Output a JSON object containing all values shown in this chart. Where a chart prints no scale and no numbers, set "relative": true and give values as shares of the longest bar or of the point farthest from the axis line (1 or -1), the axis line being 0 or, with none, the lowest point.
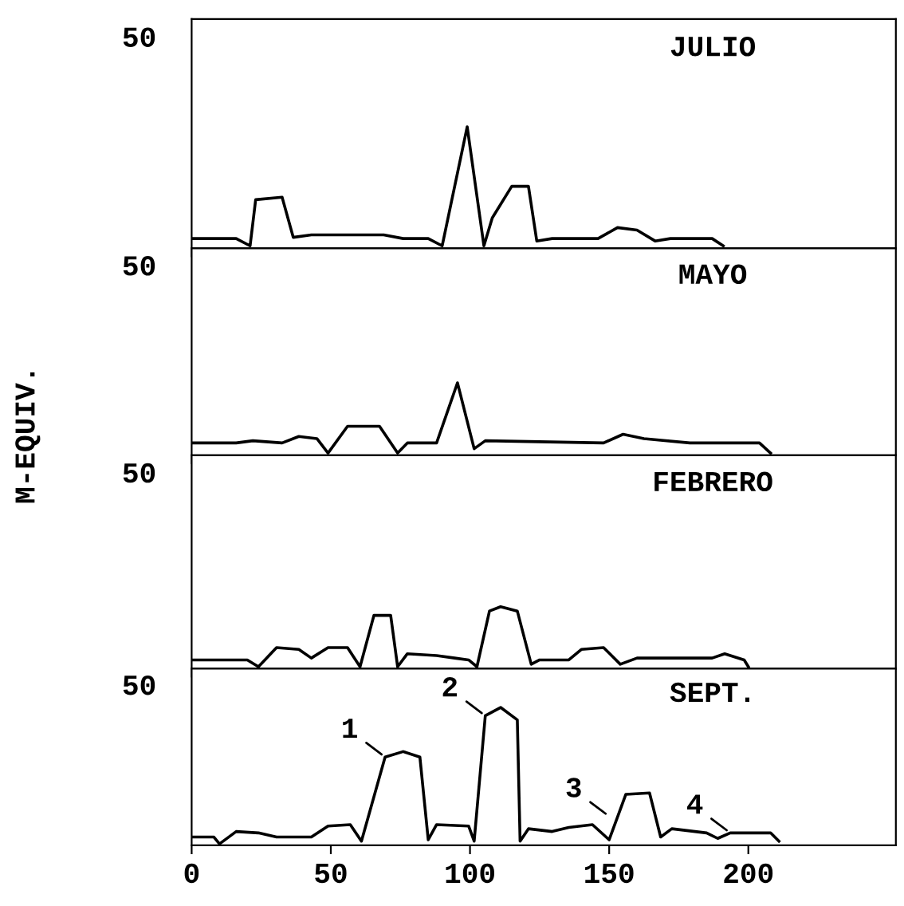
{
  "chart_data": [
    {
      "type": "line",
      "title": "JULIO",
      "relative": true,
      "xlim": [
        0,
        253
      ],
      "xticks": [
        0,
        50,
        100,
        150,
        200
      ],
      "tick_labels": false,
      "annotations": [
        "50"
      ],
      "series": [
        {
          "color": "#000000",
          "x": [
            0,
            16,
            21,
            23,
            32.5,
            36.5,
            43,
            51,
            59,
            69,
            76,
            85,
            90,
            99,
            105,
            108,
            115,
            121,
            124,
            129.5,
            146,
            153,
            160,
            166.5,
            172,
            187,
            191
          ],
          "values": [
            0.08,
            0.08,
            0.02,
            0.4,
            0.42,
            0.09,
            0.11,
            0.11,
            0.11,
            0.11,
            0.08,
            0.08,
            0.02,
            1,
            0.02,
            0.25,
            0.51,
            0.51,
            0.06,
            0.08,
            0.08,
            0.17,
            0.15,
            0.06,
            0.08,
            0.08,
            0.02
          ]
        }
      ]
    },
    {
      "type": "line",
      "title": "MAYO",
      "ylabel": "M-EQUIV.",
      "relative": true,
      "xlim": [
        0,
        253
      ],
      "xticks": [
        0,
        50,
        100,
        150,
        200
      ],
      "tick_labels": false,
      "annotations": [
        "50"
      ],
      "series": [
        {
          "color": "#000000",
          "x": [
            0,
            16,
            22,
            32.5,
            38.5,
            45,
            49,
            56,
            67.5,
            74,
            77.5,
            88,
            95.5,
            101.5,
            105.5,
            148,
            155,
            162.5,
            179,
            204,
            208
          ],
          "values": [
            0.17,
            0.17,
            0.2,
            0.17,
            0.26,
            0.23,
            0.03,
            0.4,
            0.4,
            0.03,
            0.17,
            0.17,
            1,
            0.09,
            0.2,
            0.17,
            0.29,
            0.23,
            0.17,
            0.17,
            0.03
          ]
        }
      ]
    },
    {
      "type": "line",
      "title": "FEBRERO",
      "relative": true,
      "xlim": [
        0,
        253
      ],
      "xticks": [
        0,
        50,
        100,
        150,
        200
      ],
      "tick_labels": false,
      "annotations": [
        "50"
      ],
      "series": [
        {
          "color": "#000000",
          "x": [
            0,
            20,
            24,
            30.5,
            38.5,
            43,
            49,
            56,
            60.5,
            65.5,
            71.5,
            74,
            77.5,
            88,
            94.5,
            99.5,
            102.5,
            107,
            111,
            117,
            122,
            125,
            135.5,
            140,
            148,
            154,
            160,
            177,
            187,
            191.5,
            198.5,
            200
          ],
          "values": [
            0.14,
            0.14,
            0.03,
            0.34,
            0.31,
            0.17,
            0.34,
            0.34,
            0.03,
            0.86,
            0.86,
            0.03,
            0.24,
            0.21,
            0.17,
            0.14,
            0.03,
            0.93,
            1,
            0.93,
            0.07,
            0.14,
            0.14,
            0.31,
            0.34,
            0.07,
            0.17,
            0.17,
            0.17,
            0.24,
            0.14,
            0.03
          ]
        }
      ]
    },
    {
      "type": "line",
      "title": "SEPT.",
      "relative": true,
      "xlim": [
        0,
        253
      ],
      "xticks": [
        0,
        50,
        100,
        150,
        200
      ],
      "tick_labels": "x",
      "series": [
        {
          "color": "#000000",
          "x": [
            0,
            8,
            10,
            16,
            24,
            30.5,
            43,
            49,
            57,
            61,
            69.5,
            76,
            82,
            85,
            88,
            99.5,
            101.5,
            105.5,
            111,
            117,
            118,
            121,
            129.5,
            135.5,
            144,
            150,
            156,
            164.5,
            168.5,
            172.5,
            185,
            189,
            193.5,
            208,
            211
          ],
          "values": [
            0.06,
            0.06,
            0.01,
            0.1,
            0.09,
            0.06,
            0.06,
            0.14,
            0.15,
            0.03,
            0.64,
            0.68,
            0.64,
            0.04,
            0.15,
            0.14,
            0.03,
            0.94,
            1,
            0.91,
            0.03,
            0.12,
            0.1,
            0.13,
            0.15,
            0.04,
            0.37,
            0.38,
            0.06,
            0.12,
            0.09,
            0.05,
            0.09,
            0.09,
            0.03
          ]
        }
      ],
      "annotations": [
        "50",
        {
          "text": "1",
          "x": 69.5,
          "y": 0.64
        },
        {
          "text": "2",
          "x": 105.5,
          "y": 0.94
        },
        {
          "text": "3",
          "x": 150,
          "y": 0.21
        },
        {
          "text": "4",
          "x": 193.5,
          "y": 0.09
        }
      ]
    }
  ]
}
